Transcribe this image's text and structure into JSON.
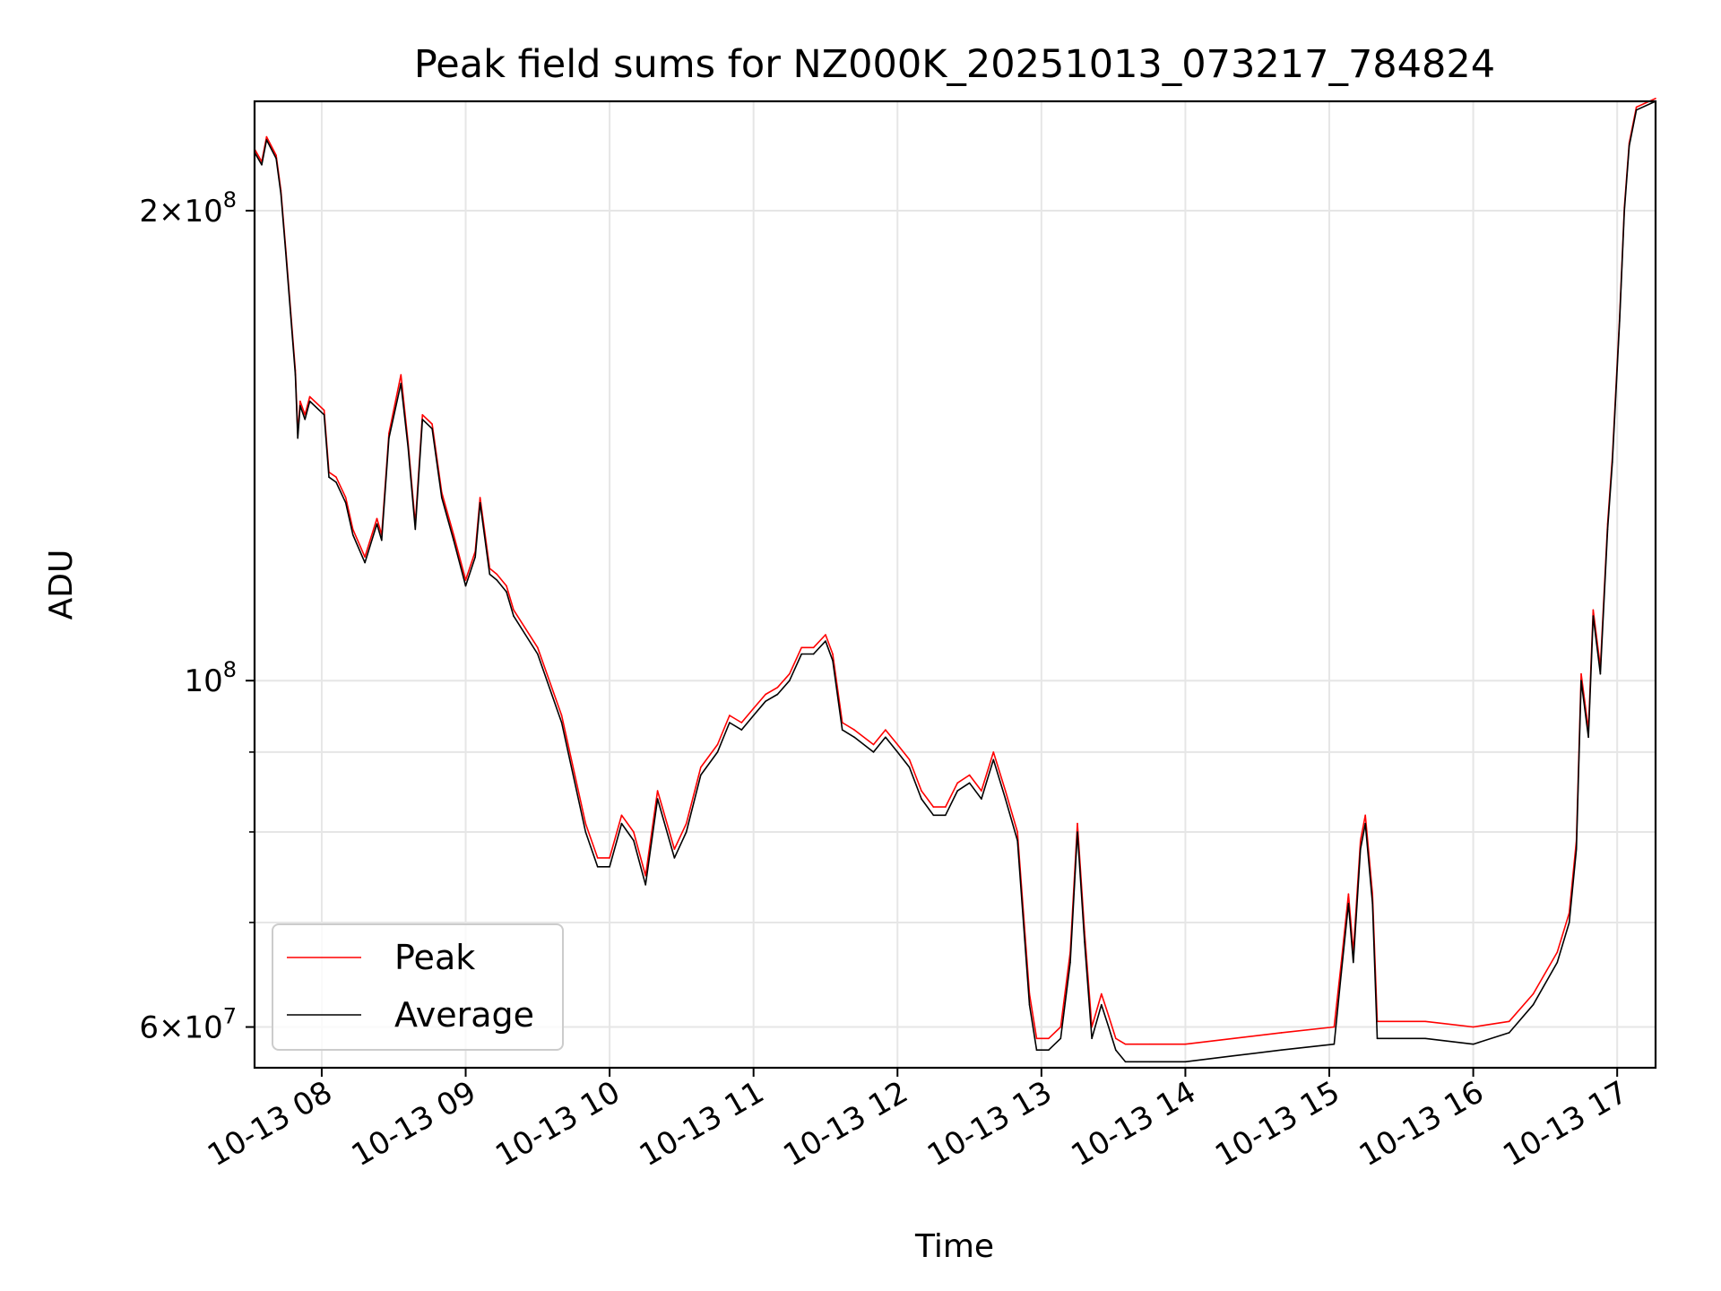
{
  "chart_data": {
    "type": "line",
    "title": "Peak field sums for NZ000K_20251013_073217_784824",
    "xlabel": "Time",
    "ylabel": "ADU",
    "y_scale": "log",
    "xlim": [
      "2025-10-13 07:32",
      "2025-10-13 17:16"
    ],
    "ylim": [
      56500000,
      235000000
    ],
    "grid": true,
    "legend_position": "lower-left",
    "x_ticks": [
      "10-13 08",
      "10-13 09",
      "10-13 10",
      "10-13 11",
      "10-13 12",
      "10-13 13",
      "10-13 14",
      "10-13 15",
      "10-13 16",
      "10-13 17"
    ],
    "x_tick_times": [
      "2025-10-13 08:00",
      "2025-10-13 09:00",
      "2025-10-13 10:00",
      "2025-10-13 11:00",
      "2025-10-13 12:00",
      "2025-10-13 13:00",
      "2025-10-13 14:00",
      "2025-10-13 15:00",
      "2025-10-13 16:00",
      "2025-10-13 17:00"
    ],
    "y_ticks_major": [
      {
        "label_base": "2×10",
        "label_exp": "8",
        "value": 200000000
      },
      {
        "label_base": "10",
        "label_exp": "8",
        "value": 100000000
      },
      {
        "label_base": "6×10",
        "label_exp": "7",
        "value": 60000000
      }
    ],
    "y_ticks_minor": [
      70000000,
      80000000,
      90000000,
      300000000
    ],
    "x": [
      "2025-10-13 07:32",
      "2025-10-13 07:35",
      "2025-10-13 07:37",
      "2025-10-13 07:41",
      "2025-10-13 07:43",
      "2025-10-13 07:45",
      "2025-10-13 07:47",
      "2025-10-13 07:49",
      "2025-10-13 07:50",
      "2025-10-13 07:51",
      "2025-10-13 07:53",
      "2025-10-13 07:55",
      "2025-10-13 08:01",
      "2025-10-13 08:03",
      "2025-10-13 08:06",
      "2025-10-13 08:10",
      "2025-10-13 08:13",
      "2025-10-13 08:18",
      "2025-10-13 08:23",
      "2025-10-13 08:25",
      "2025-10-13 08:28",
      "2025-10-13 08:33",
      "2025-10-13 08:36",
      "2025-10-13 08:39",
      "2025-10-13 08:42",
      "2025-10-13 08:46",
      "2025-10-13 08:50",
      "2025-10-13 08:55",
      "2025-10-13 09:00",
      "2025-10-13 09:04",
      "2025-10-13 09:06",
      "2025-10-13 09:10",
      "2025-10-13 09:13",
      "2025-10-13 09:17",
      "2025-10-13 09:20",
      "2025-10-13 09:30",
      "2025-10-13 09:40",
      "2025-10-13 09:50",
      "2025-10-13 09:55",
      "2025-10-13 10:00",
      "2025-10-13 10:05",
      "2025-10-13 10:10",
      "2025-10-13 10:15",
      "2025-10-13 10:20",
      "2025-10-13 10:27",
      "2025-10-13 10:32",
      "2025-10-13 10:38",
      "2025-10-13 10:45",
      "2025-10-13 10:50",
      "2025-10-13 10:55",
      "2025-10-13 11:00",
      "2025-10-13 11:05",
      "2025-10-13 11:10",
      "2025-10-13 11:15",
      "2025-10-13 11:20",
      "2025-10-13 11:25",
      "2025-10-13 11:30",
      "2025-10-13 11:33",
      "2025-10-13 11:37",
      "2025-10-13 11:42",
      "2025-10-13 11:50",
      "2025-10-13 11:55",
      "2025-10-13 12:00",
      "2025-10-13 12:05",
      "2025-10-13 12:10",
      "2025-10-13 12:15",
      "2025-10-13 12:20",
      "2025-10-13 12:25",
      "2025-10-13 12:30",
      "2025-10-13 12:35",
      "2025-10-13 12:40",
      "2025-10-13 12:45",
      "2025-10-13 12:50",
      "2025-10-13 12:55",
      "2025-10-13 12:58",
      "2025-10-13 13:03",
      "2025-10-13 13:08",
      "2025-10-13 13:12",
      "2025-10-13 13:15",
      "2025-10-13 13:18",
      "2025-10-13 13:21",
      "2025-10-13 13:25",
      "2025-10-13 13:28",
      "2025-10-13 13:31",
      "2025-10-13 13:35",
      "2025-10-13 13:40",
      "2025-10-13 13:45",
      "2025-10-13 14:00",
      "2025-10-13 14:20",
      "2025-10-13 14:40",
      "2025-10-13 15:02",
      "2025-10-13 15:05",
      "2025-10-13 15:08",
      "2025-10-13 15:10",
      "2025-10-13 15:13",
      "2025-10-13 15:15",
      "2025-10-13 15:18",
      "2025-10-13 15:20",
      "2025-10-13 15:25",
      "2025-10-13 15:40",
      "2025-10-13 16:00",
      "2025-10-13 16:15",
      "2025-10-13 16:25",
      "2025-10-13 16:35",
      "2025-10-13 16:40",
      "2025-10-13 16:43",
      "2025-10-13 16:45",
      "2025-10-13 16:48",
      "2025-10-13 16:50",
      "2025-10-13 16:53",
      "2025-10-13 16:56",
      "2025-10-13 16:58",
      "2025-10-13 17:01",
      "2025-10-13 17:03",
      "2025-10-13 17:05",
      "2025-10-13 17:08",
      "2025-10-13 17:16"
    ],
    "series": [
      {
        "name": "Average",
        "color": "#000000",
        "values": [
          218000000,
          214000000,
          222000000,
          216000000,
          205000000,
          188000000,
          172000000,
          157000000,
          143000000,
          150000000,
          147000000,
          151000000,
          148000000,
          135000000,
          134000000,
          130000000,
          124000000,
          119000000,
          126000000,
          123000000,
          143000000,
          155000000,
          141000000,
          125000000,
          147000000,
          145000000,
          131000000,
          123000000,
          115000000,
          120000000,
          130000000,
          117000000,
          116000000,
          114000000,
          110000000,
          104000000,
          94000000,
          80000000,
          76000000,
          76000000,
          81000000,
          79000000,
          74000000,
          84000000,
          77000000,
          80000000,
          87000000,
          90000000,
          94000000,
          93000000,
          95000000,
          97000000,
          98000000,
          100000000,
          104000000,
          104000000,
          106000000,
          103000000,
          93000000,
          92000000,
          90000000,
          92000000,
          90000000,
          88000000,
          84000000,
          82000000,
          82000000,
          85000000,
          86000000,
          84000000,
          89000000,
          84000000,
          79000000,
          62000000,
          58000000,
          58000000,
          59000000,
          66000000,
          80000000,
          68000000,
          59000000,
          62000000,
          60000000,
          58000000,
          57000000,
          57000000,
          57000000,
          57000000,
          57500000,
          58000000,
          58500000,
          65000000,
          72000000,
          66000000,
          78000000,
          81000000,
          72000000,
          59000000,
          59000000,
          59000000,
          58500000,
          59500000,
          62000000,
          66000000,
          70000000,
          78000000,
          100000000,
          92000000,
          110000000,
          101000000,
          125000000,
          138000000,
          170000000,
          200000000,
          220000000,
          232000000,
          235000000
        ]
      },
      {
        "name": "Peak",
        "color": "#ff0000",
        "values": [
          219000000,
          215000000,
          223000000,
          217000000,
          206000000,
          189000000,
          173000000,
          158000000,
          144000000,
          151000000,
          148000000,
          152000000,
          149000000,
          136000000,
          135000000,
          131000000,
          125000000,
          120000000,
          127000000,
          124000000,
          144000000,
          157000000,
          142000000,
          126000000,
          148000000,
          146000000,
          132000000,
          124000000,
          116000000,
          121000000,
          131000000,
          118000000,
          117000000,
          115000000,
          111000000,
          105000000,
          95000000,
          81000000,
          77000000,
          77000000,
          82000000,
          80000000,
          75000000,
          85000000,
          78000000,
          81000000,
          88000000,
          91000000,
          95000000,
          94000000,
          96000000,
          98000000,
          99000000,
          101000000,
          105000000,
          105000000,
          107000000,
          104000000,
          94000000,
          93000000,
          91000000,
          93000000,
          91000000,
          89000000,
          85000000,
          83000000,
          83000000,
          86000000,
          87000000,
          85000000,
          90000000,
          85000000,
          80000000,
          63000000,
          59000000,
          59000000,
          60000000,
          67000000,
          81000000,
          69000000,
          60000000,
          63000000,
          61000000,
          59000000,
          58500000,
          58500000,
          58500000,
          58500000,
          59000000,
          59500000,
          60000000,
          66000000,
          73000000,
          67000000,
          79000000,
          82000000,
          73000000,
          60500000,
          60500000,
          60500000,
          60000000,
          60500000,
          63000000,
          67000000,
          71000000,
          79000000,
          101000000,
          93000000,
          111000000,
          102000000,
          126000000,
          139000000,
          171000000,
          201000000,
          221000000,
          233000000,
          236000000
        ]
      }
    ]
  }
}
